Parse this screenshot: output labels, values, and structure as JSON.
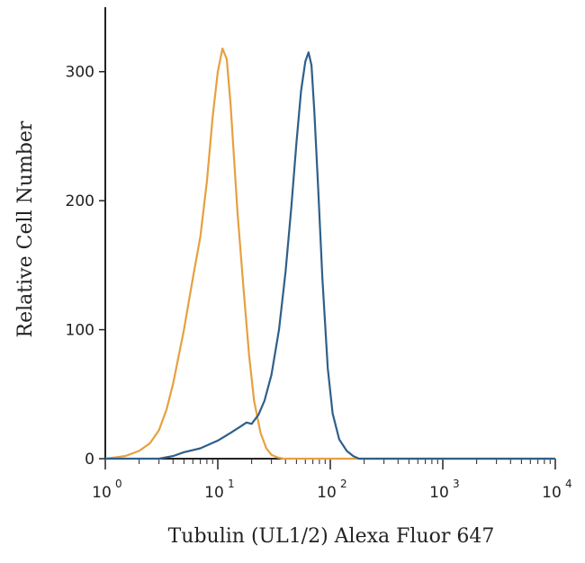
{
  "chart_data": {
    "type": "line",
    "title": "",
    "xlabel": "Tubulin (UL1/2) Alexa Fluor 647",
    "ylabel": "Relative Cell Number",
    "x_scale": "log",
    "xlim": [
      1,
      10000
    ],
    "ylim": [
      0,
      350
    ],
    "grid": false,
    "x_ticks": [
      {
        "value": 1,
        "base": "10",
        "exp": "0"
      },
      {
        "value": 10,
        "base": "10",
        "exp": "1"
      },
      {
        "value": 100,
        "base": "10",
        "exp": "2"
      },
      {
        "value": 1000,
        "base": "10",
        "exp": "3"
      },
      {
        "value": 10000,
        "base": "10",
        "exp": "4"
      }
    ],
    "y_ticks": [
      "0",
      "100",
      "200",
      "300"
    ],
    "series": [
      {
        "color": "#e6a040",
        "x": [
          1,
          1.5,
          2,
          2.5,
          3,
          3.5,
          4,
          5,
          6,
          7,
          8,
          9,
          10,
          11,
          12,
          13,
          14,
          15,
          17,
          19,
          21,
          24,
          27,
          30,
          34,
          38,
          45,
          60,
          100,
          1000,
          10000
        ],
        "y": [
          0,
          2,
          6,
          12,
          22,
          38,
          58,
          100,
          140,
          172,
          215,
          265,
          300,
          318,
          310,
          275,
          230,
          190,
          130,
          80,
          45,
          20,
          8,
          3,
          1,
          0,
          0,
          0,
          0,
          0,
          0
        ]
      },
      {
        "color": "#2f5f8a",
        "x": [
          1,
          3,
          4,
          5,
          7,
          10,
          13,
          16,
          18,
          20,
          23,
          26,
          30,
          35,
          40,
          45,
          50,
          55,
          60,
          64,
          68,
          72,
          78,
          85,
          95,
          105,
          120,
          140,
          160,
          180,
          200,
          1000,
          10000
        ],
        "y": [
          0,
          0,
          2,
          5,
          8,
          14,
          20,
          25,
          28,
          27,
          34,
          45,
          65,
          100,
          145,
          195,
          245,
          285,
          308,
          315,
          305,
          270,
          210,
          140,
          70,
          35,
          15,
          6,
          2,
          0,
          0,
          0,
          0
        ]
      }
    ]
  }
}
